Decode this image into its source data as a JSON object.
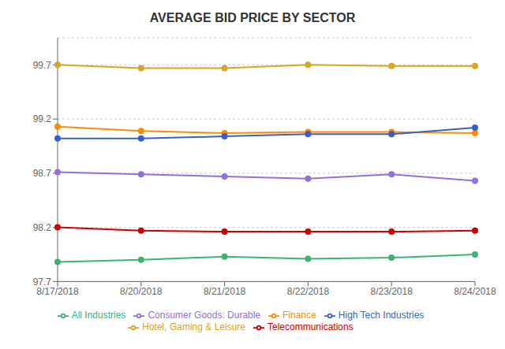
{
  "chart_data": {
    "type": "line",
    "title": "AVERAGE BID PRICE BY SECTOR",
    "categories": [
      "8/17/2018",
      "8/20/2018",
      "8/21/2018",
      "8/22/2018",
      "8/23/2018",
      "8/24/2018"
    ],
    "series": [
      {
        "name": "All Industries",
        "color": "#3CB371",
        "values": [
          97.88,
          97.9,
          97.93,
          97.91,
          97.92,
          97.95
        ]
      },
      {
        "name": "Consumer Goods: Durable",
        "color": "#9370DB",
        "values": [
          98.71,
          98.69,
          98.67,
          98.65,
          98.69,
          98.63
        ]
      },
      {
        "name": "Finance",
        "color": "#FF8C00",
        "values": [
          99.13,
          99.09,
          99.07,
          99.08,
          99.08,
          99.07
        ]
      },
      {
        "name": "High Tech Industries",
        "color": "#3A5FCD",
        "values": [
          99.02,
          99.02,
          99.04,
          99.06,
          99.06,
          99.12
        ]
      },
      {
        "name": "Hotel, Gaming & Leisure",
        "color": "#DAA520",
        "values": [
          99.7,
          99.67,
          99.67,
          99.7,
          99.69,
          99.69
        ]
      },
      {
        "name": "Telecommunications",
        "color": "#CC0000",
        "values": [
          98.2,
          98.17,
          98.16,
          98.16,
          98.16,
          98.17
        ]
      }
    ],
    "ylim": [
      97.7,
      99.95
    ],
    "yticks": [
      97.7,
      98.2,
      98.7,
      99.2,
      99.7
    ],
    "grid": true,
    "legend": "bottom",
    "marker": "circle"
  }
}
